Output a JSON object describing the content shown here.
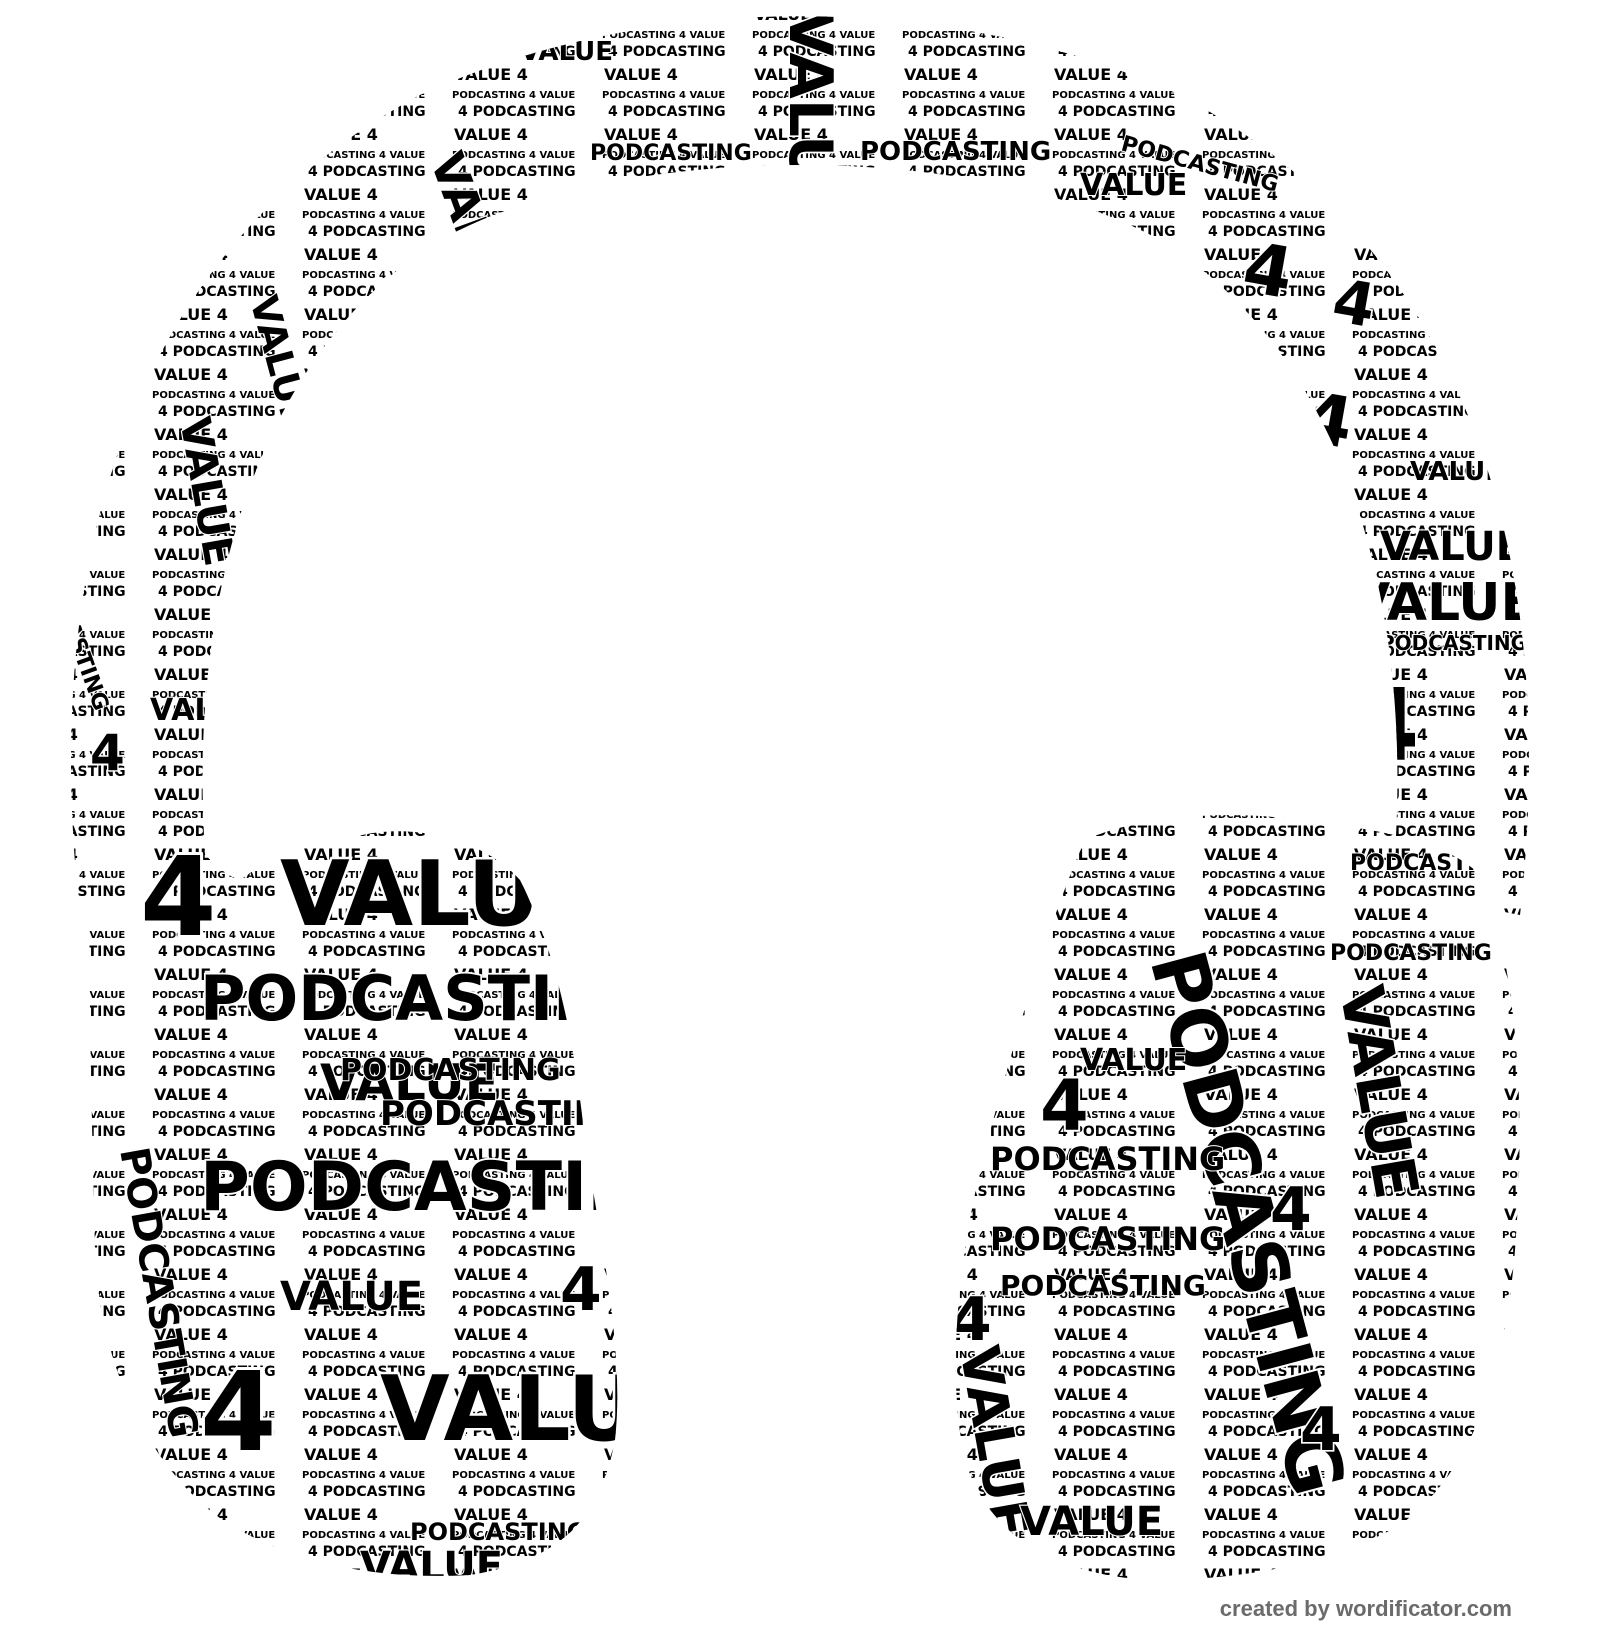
{
  "artwork": {
    "shape": "headphones-icon",
    "words": [
      "VALUE",
      "4",
      "PODCASTING"
    ],
    "ink_color": "#000000",
    "background_color": "#ffffff"
  },
  "credit": {
    "text": "created by wordificator.com",
    "color": "#6b6b6b"
  }
}
